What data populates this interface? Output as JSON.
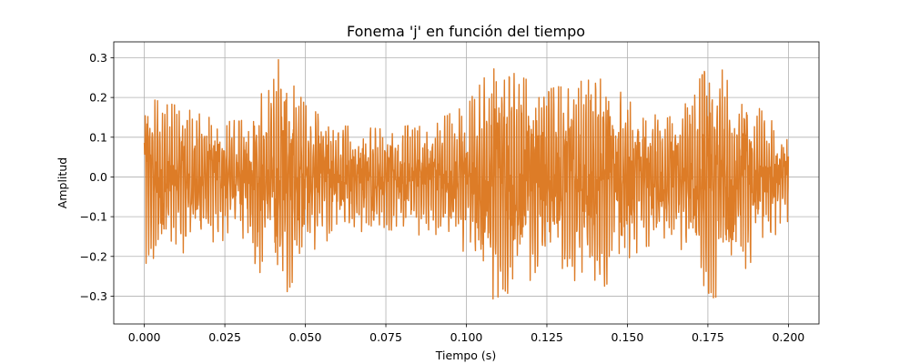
{
  "chart_data": {
    "type": "line",
    "title": "Fonema 'j' en función del tiempo",
    "xlabel": "Tiempo (s)",
    "ylabel": "Amplitud",
    "xlim": [
      -0.0095,
      0.2095
    ],
    "ylim": [
      -0.37,
      0.34
    ],
    "x_ticks": [
      0.0,
      0.025,
      0.05,
      0.075,
      0.1,
      0.125,
      0.15,
      0.175,
      0.2
    ],
    "x_tick_labels": [
      "0.000",
      "0.025",
      "0.050",
      "0.075",
      "0.100",
      "0.125",
      "0.150",
      "0.175",
      "0.200"
    ],
    "y_ticks": [
      -0.3,
      -0.2,
      -0.1,
      0.0,
      0.1,
      0.2,
      0.3
    ],
    "y_tick_labels": [
      "−0.3",
      "−0.2",
      "−0.1",
      "0.0",
      "0.1",
      "0.2",
      "0.3"
    ],
    "grid": true,
    "series": [
      {
        "color": "#dd7c27",
        "x_start": 0.0,
        "x_end": 0.2,
        "envelope_t": [
          0.0,
          0.01,
          0.02,
          0.03,
          0.042,
          0.05,
          0.06,
          0.075,
          0.09,
          0.1,
          0.108,
          0.115,
          0.125,
          0.135,
          0.143,
          0.155,
          0.165,
          0.175,
          0.18,
          0.19,
          0.2
        ],
        "envelope_amp": [
          0.2,
          0.18,
          0.15,
          0.14,
          0.3,
          0.18,
          0.13,
          0.12,
          0.14,
          0.18,
          0.28,
          0.26,
          0.22,
          0.24,
          0.25,
          0.16,
          0.15,
          0.28,
          0.27,
          0.18,
          0.1
        ],
        "carrier_freq_hz": 1300
      }
    ]
  }
}
